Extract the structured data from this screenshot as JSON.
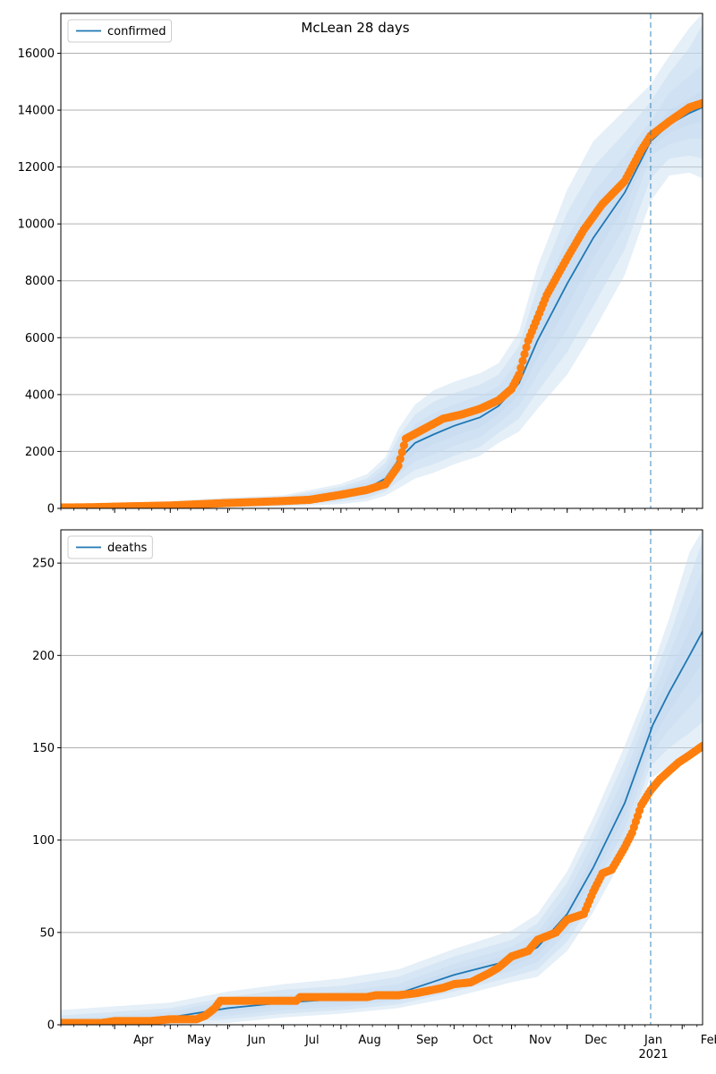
{
  "figure": {
    "suptitle": "McLean 28 days"
  },
  "chart_data": [
    {
      "type": "line",
      "title": "",
      "xlabel": "",
      "ylabel": "",
      "x_range": [
        "2020-03-03",
        "2021-02-12"
      ],
      "ylim": [
        0,
        17400
      ],
      "yticks": [
        0,
        2000,
        4000,
        6000,
        8000,
        10000,
        12000,
        14000,
        16000
      ],
      "xtick_labels": [
        {
          "date": "2020-04-01",
          "label": "Apr"
        },
        {
          "date": "2020-05-01",
          "label": "May"
        },
        {
          "date": "2020-06-01",
          "label": "Jun"
        },
        {
          "date": "2020-07-01",
          "label": "Jul"
        },
        {
          "date": "2020-08-01",
          "label": "Aug"
        },
        {
          "date": "2020-09-01",
          "label": "Sep"
        },
        {
          "date": "2020-10-01",
          "label": "Oct"
        },
        {
          "date": "2020-11-01",
          "label": "Nov"
        },
        {
          "date": "2020-12-01",
          "label": "Dec"
        },
        {
          "date": "2021-01-01",
          "label": "Jan"
        },
        {
          "date": "2021-02-01",
          "label": "Feb"
        }
      ],
      "year_label": {
        "date": "2021-01-01",
        "label": "2021"
      },
      "grid": "horizontal",
      "legend": {
        "position": "top-left",
        "entries": [
          "confirmed"
        ]
      },
      "forecast_start": "2021-01-15",
      "colors": {
        "model": "#1f77b4",
        "observed": "#ff7f0e",
        "band": "#c6dbef"
      },
      "series": [
        {
          "name": "confirmed",
          "role": "model-median",
          "x": [
            "2020-03-03",
            "2020-04-01",
            "2020-05-01",
            "2020-06-01",
            "2020-07-01",
            "2020-08-01",
            "2020-08-15",
            "2020-08-25",
            "2020-09-01",
            "2020-09-10",
            "2020-09-20",
            "2020-10-01",
            "2020-10-15",
            "2020-10-25",
            "2020-11-05",
            "2020-11-15",
            "2020-12-01",
            "2020-12-15",
            "2021-01-01",
            "2021-01-15",
            "2021-01-25",
            "2021-02-05",
            "2021-02-12"
          ],
          "values": [
            20,
            50,
            100,
            190,
            250,
            500,
            700,
            1050,
            1700,
            2300,
            2600,
            2900,
            3200,
            3600,
            4400,
            5900,
            7900,
            9500,
            11100,
            12900,
            13500,
            13900,
            14100
          ],
          "bands": [
            {
              "lower": [
                0,
                20,
                60,
                150,
                200,
                420,
                600,
                900,
                1450,
                1950,
                2250,
                2550,
                2850,
                3300,
                4000,
                5300,
                7100,
                8800,
                10600,
                12700,
                13200,
                13500,
                13600
              ],
              "upper": [
                40,
                80,
                140,
                230,
                300,
                580,
                800,
                1200,
                1950,
                2600,
                2950,
                3250,
                3600,
                3950,
                4800,
                6500,
                8700,
                10300,
                11700,
                13200,
                14000,
                14400,
                14700
              ]
            },
            {
              "lower": [
                0,
                0,
                20,
                100,
                150,
                330,
                480,
                750,
                1200,
                1650,
                1900,
                2200,
                2500,
                3000,
                3600,
                4700,
                6300,
                8000,
                9900,
                12400,
                12800,
                13000,
                13000
              ],
              "upper": [
                60,
                110,
                180,
                280,
                350,
                670,
                920,
                1400,
                2200,
                2950,
                3350,
                3650,
                3950,
                4300,
                5200,
                7100,
                9500,
                11100,
                12400,
                13600,
                14600,
                15200,
                15600
              ]
            },
            {
              "lower": [
                0,
                0,
                0,
                60,
                100,
                240,
                360,
                600,
                950,
                1350,
                1550,
                1850,
                2150,
                2650,
                3150,
                4100,
                5500,
                7100,
                9100,
                11600,
                12300,
                12400,
                12300
              ],
              "upper": [
                80,
                140,
                220,
                330,
                400,
                760,
                1050,
                1600,
                2500,
                3300,
                3750,
                4050,
                4350,
                4700,
                5700,
                7800,
                10400,
                12000,
                13200,
                14300,
                15300,
                16200,
                17000
              ]
            },
            {
              "lower": [
                0,
                0,
                0,
                30,
                60,
                150,
                250,
                450,
                700,
                1050,
                1250,
                1550,
                1850,
                2300,
                2700,
                3500,
                4700,
                6200,
                8200,
                10800,
                11700,
                11800,
                11600
              ],
              "upper": [
                100,
                170,
                260,
                380,
                460,
                860,
                1200,
                1800,
                2800,
                3650,
                4150,
                4450,
                4750,
                5100,
                6200,
                8500,
                11200,
                12900,
                14000,
                14900,
                15900,
                16900,
                17400
              ]
            }
          ]
        },
        {
          "name": "",
          "role": "observed",
          "x": [
            "2020-03-03",
            "2020-03-20",
            "2020-04-01",
            "2020-04-15",
            "2020-05-01",
            "2020-05-15",
            "2020-06-01",
            "2020-06-15",
            "2020-07-01",
            "2020-07-15",
            "2020-08-01",
            "2020-08-15",
            "2020-08-25",
            "2020-09-01",
            "2020-09-05",
            "2020-09-15",
            "2020-09-25",
            "2020-10-05",
            "2020-10-15",
            "2020-10-25",
            "2020-11-01",
            "2020-11-05",
            "2020-11-10",
            "2020-11-20",
            "2020-12-01",
            "2020-12-10",
            "2020-12-20",
            "2021-01-01",
            "2021-01-10",
            "2021-01-15",
            "2021-01-25",
            "2021-02-05",
            "2021-02-12"
          ],
          "values": [
            30,
            40,
            60,
            80,
            100,
            140,
            190,
            220,
            260,
            300,
            480,
            650,
            850,
            1500,
            2450,
            2800,
            3150,
            3300,
            3500,
            3800,
            4200,
            4700,
            5900,
            7500,
            8800,
            9800,
            10700,
            11500,
            12600,
            13100,
            13600,
            14100,
            14250
          ]
        }
      ]
    },
    {
      "type": "line",
      "title": "",
      "xlabel": "",
      "ylabel": "",
      "x_range": [
        "2020-03-03",
        "2021-02-12"
      ],
      "ylim": [
        0,
        268
      ],
      "yticks": [
        0,
        50,
        100,
        150,
        200,
        250
      ],
      "xtick_labels": [
        {
          "date": "2020-04-01",
          "label": "Apr"
        },
        {
          "date": "2020-05-01",
          "label": "May"
        },
        {
          "date": "2020-06-01",
          "label": "Jun"
        },
        {
          "date": "2020-07-01",
          "label": "Jul"
        },
        {
          "date": "2020-08-01",
          "label": "Aug"
        },
        {
          "date": "2020-09-01",
          "label": "Sep"
        },
        {
          "date": "2020-10-01",
          "label": "Oct"
        },
        {
          "date": "2020-11-01",
          "label": "Nov"
        },
        {
          "date": "2020-12-01",
          "label": "Dec"
        },
        {
          "date": "2021-01-01",
          "label": "Jan"
        },
        {
          "date": "2021-02-01",
          "label": "Feb"
        }
      ],
      "year_label": {
        "date": "2021-01-01",
        "label": "2021"
      },
      "grid": "horizontal",
      "legend": {
        "position": "top-left",
        "entries": [
          "deaths"
        ]
      },
      "forecast_start": "2021-01-15",
      "colors": {
        "model": "#1f77b4",
        "observed": "#ff7f0e",
        "band": "#c6dbef"
      },
      "series": [
        {
          "name": "deaths",
          "role": "model-median",
          "x": [
            "2020-03-03",
            "2020-04-01",
            "2020-05-01",
            "2020-06-01",
            "2020-07-01",
            "2020-08-01",
            "2020-09-01",
            "2020-10-01",
            "2020-11-01",
            "2020-11-15",
            "2020-12-01",
            "2020-12-15",
            "2021-01-01",
            "2021-01-15",
            "2021-01-16",
            "2021-01-25",
            "2021-02-05",
            "2021-02-12"
          ],
          "values": [
            0,
            2,
            4,
            9,
            12,
            14,
            17,
            27,
            35,
            42,
            60,
            85,
            120,
            159,
            162,
            180,
            200,
            213
          ],
          "bands": [
            {
              "lower": [
                0,
                1,
                3,
                7,
                10,
                12,
                15,
                24,
                32,
                38,
                55,
                79,
                113,
                153,
                155,
                170,
                186,
                196
              ],
              "upper": [
                1,
                3,
                5,
                11,
                14,
                16,
                19,
                30,
                38,
                46,
                65,
                91,
                127,
                165,
                170,
                190,
                214,
                230
              ]
            },
            {
              "lower": [
                0,
                0,
                2,
                5,
                8,
                10,
                13,
                21,
                29,
                34,
                50,
                73,
                106,
                147,
                148,
                160,
                172,
                180
              ],
              "upper": [
                3,
                5,
                7,
                13,
                16,
                18,
                22,
                33,
                42,
                50,
                71,
                98,
                135,
                172,
                178,
                200,
                228,
                246
              ]
            },
            {
              "lower": [
                0,
                0,
                1,
                3,
                6,
                8,
                11,
                18,
                26,
                30,
                45,
                67,
                99,
                141,
                141,
                150,
                158,
                164
              ],
              "upper": [
                5,
                7,
                9,
                15,
                19,
                21,
                26,
                37,
                46,
                55,
                77,
                105,
                143,
                179,
                186,
                210,
                242,
                262
              ]
            },
            {
              "lower": [
                0,
                0,
                0,
                1,
                4,
                6,
                9,
                15,
                23,
                26,
                40,
                61,
                92,
                135,
                134,
                140,
                144,
                148
              ],
              "upper": [
                8,
                10,
                12,
                18,
                22,
                25,
                30,
                41,
                51,
                60,
                83,
                112,
                151,
                186,
                194,
                220,
                256,
                268
              ]
            }
          ]
        },
        {
          "name": "",
          "role": "observed",
          "x": [
            "2020-03-03",
            "2020-03-25",
            "2020-04-01",
            "2020-04-20",
            "2020-05-01",
            "2020-05-10",
            "2020-05-15",
            "2020-05-20",
            "2020-05-25",
            "2020-05-28",
            "2020-06-15",
            "2020-07-01",
            "2020-07-08",
            "2020-07-10",
            "2020-08-01",
            "2020-08-15",
            "2020-08-20",
            "2020-09-01",
            "2020-09-10",
            "2020-09-25",
            "2020-10-01",
            "2020-10-10",
            "2020-10-20",
            "2020-10-25",
            "2020-11-01",
            "2020-11-10",
            "2020-11-15",
            "2020-11-25",
            "2020-12-01",
            "2020-12-10",
            "2020-12-15",
            "2020-12-20",
            "2020-12-25",
            "2021-01-01",
            "2021-01-05",
            "2021-01-10",
            "2021-01-15",
            "2021-01-20",
            "2021-01-30",
            "2021-02-05",
            "2021-02-12"
          ],
          "values": [
            1,
            1,
            2,
            2,
            3,
            3,
            3,
            5,
            9,
            13,
            13,
            13,
            13,
            15,
            15,
            15,
            16,
            16,
            17,
            20,
            22,
            23,
            28,
            31,
            37,
            40,
            46,
            50,
            57,
            60,
            72,
            82,
            84,
            96,
            104,
            119,
            127,
            133,
            142,
            146,
            151
          ]
        }
      ]
    }
  ]
}
